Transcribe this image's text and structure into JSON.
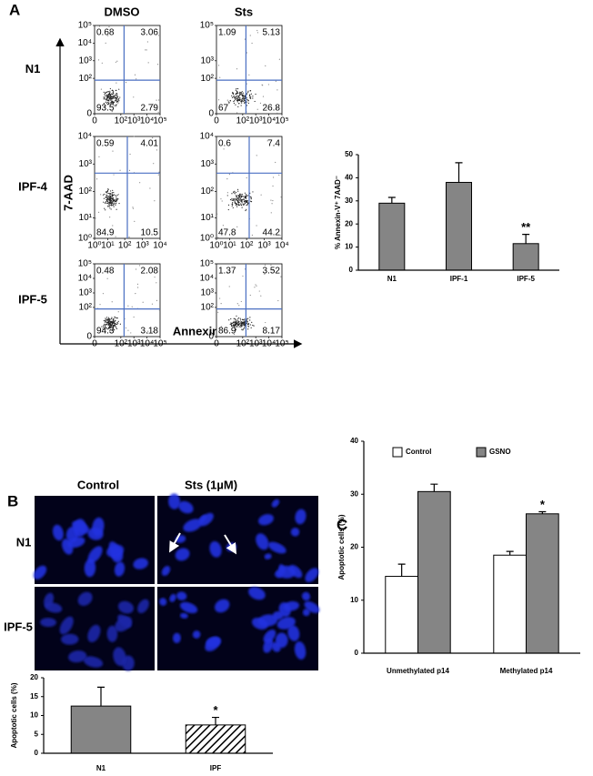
{
  "panel_labels": [
    "A",
    "B",
    "C"
  ],
  "micrographs": {
    "column_labels": [
      "Control",
      "Sts (1µM)"
    ],
    "row_labels": [
      "N1",
      "IPF-5"
    ]
  },
  "chart_data": [
    {
      "type": "flow",
      "column_labels": [
        "DMSO",
        "Sts"
      ],
      "row_labels": [
        "N1",
        "IPF-4",
        "IPF-5"
      ],
      "xlabel": "Annexin-V",
      "ylabel": "7-AAD",
      "line_color": "#4a6fc2",
      "plots": [
        {
          "quadrants": [
            0.68,
            3.06,
            93.5,
            2.79
          ],
          "xlim": [
            0,
            100000
          ],
          "ylim": [
            0,
            100000
          ],
          "xticks": [
            0,
            {
              "value": 100,
              "label": "10²"
            },
            {
              "value": 1000,
              "label": "10³"
            },
            {
              "value": 10000,
              "label": "10⁴"
            },
            {
              "value": 100000,
              "label": "10⁵"
            }
          ],
          "yticks": [
            0,
            {
              "value": 100,
              "label": "10²"
            },
            {
              "value": 1000,
              "label": "10³"
            },
            {
              "value": 10000,
              "label": "10⁴"
            },
            {
              "value": 100000,
              "label": "10⁵"
            }
          ]
        },
        {
          "quadrants": [
            1.09,
            5.13,
            67,
            26.8
          ],
          "xlim": [
            0,
            100000
          ],
          "ylim": [
            0,
            100000
          ],
          "xticks": [
            0,
            {
              "value": 100,
              "label": "10²"
            },
            {
              "value": 1000,
              "label": "10³"
            },
            {
              "value": 10000,
              "label": "10⁴"
            },
            {
              "value": 100000,
              "label": "10⁵"
            }
          ],
          "yticks": [
            0,
            {
              "value": 100,
              "label": "10²"
            },
            {
              "value": 1000,
              "label": "10³"
            },
            {
              "value": 100000,
              "label": "10⁵"
            }
          ]
        },
        {
          "quadrants": [
            0.59,
            4.01,
            84.9,
            10.5
          ],
          "xlim": [
            1,
            10000
          ],
          "ylim": [
            1,
            10000
          ],
          "xticks": [
            {
              "value": 1,
              "label": "10⁰"
            },
            {
              "value": 10,
              "label": "10¹"
            },
            {
              "value": 100,
              "label": "10²"
            },
            {
              "value": 1000,
              "label": "10³"
            },
            {
              "value": 10000,
              "label": "10⁴"
            }
          ],
          "yticks": [
            {
              "value": 1,
              "label": "10⁰"
            },
            {
              "value": 10,
              "label": "10¹"
            },
            {
              "value": 100,
              "label": "10²"
            },
            {
              "value": 1000,
              "label": "10³"
            },
            {
              "value": 10000,
              "label": "10⁴"
            }
          ]
        },
        {
          "quadrants": [
            0.6,
            7.4,
            47.8,
            44.2
          ],
          "xlim": [
            1,
            10000
          ],
          "ylim": [
            1,
            10000
          ],
          "xticks": [
            {
              "value": 1,
              "label": "10⁰"
            },
            {
              "value": 10,
              "label": "10¹"
            },
            {
              "value": 100,
              "label": "10²"
            },
            {
              "value": 1000,
              "label": "10³"
            },
            {
              "value": 10000,
              "label": "10⁴"
            }
          ],
          "yticks": [
            {
              "value": 1,
              "label": "10⁰"
            },
            {
              "value": 10,
              "label": "10¹"
            },
            {
              "value": 100,
              "label": "10²"
            },
            {
              "value": 1000,
              "label": "10³"
            },
            {
              "value": 10000,
              "label": "10⁴"
            }
          ]
        },
        {
          "quadrants": [
            0.48,
            2.08,
            94.3,
            3.18
          ],
          "xlim": [
            0,
            100000
          ],
          "ylim": [
            0,
            100000
          ],
          "xticks": [
            0,
            {
              "value": 100,
              "label": "10²"
            },
            {
              "value": 1000,
              "label": "10³"
            },
            {
              "value": 10000,
              "label": "10⁴"
            },
            {
              "value": 100000,
              "label": "10⁵"
            }
          ],
          "yticks": [
            0,
            {
              "value": 100,
              "label": "10²"
            },
            {
              "value": 1000,
              "label": "10³"
            },
            {
              "value": 10000,
              "label": "10⁴"
            },
            {
              "value": 100000,
              "label": "10⁵"
            }
          ]
        },
        {
          "quadrants": [
            1.37,
            3.52,
            86.9,
            8.17
          ],
          "xlim": [
            0,
            100000
          ],
          "ylim": [
            0,
            100000
          ],
          "xticks": [
            0,
            {
              "value": 100,
              "label": "10²"
            },
            {
              "value": 1000,
              "label": "10³"
            },
            {
              "value": 10000,
              "label": "10⁴"
            },
            {
              "value": 100000,
              "label": "10⁵"
            }
          ],
          "yticks": [
            0,
            {
              "value": 100,
              "label": "10²"
            },
            {
              "value": 1000,
              "label": "10³"
            },
            {
              "value": 10000,
              "label": "10⁴"
            },
            {
              "value": 100000,
              "label": "10⁵"
            }
          ]
        }
      ]
    },
    {
      "type": "bar",
      "ylabel": "% Annexin-V⁺ 7AAD⁻",
      "categories": [
        "N1",
        "IPF-1",
        "IPF-5"
      ],
      "values": [
        29,
        38,
        11.5
      ],
      "errors": [
        2.5,
        8.5,
        4
      ],
      "significance": [
        null,
        null,
        "**"
      ],
      "color": "#858585",
      "ylim": [
        0,
        50
      ],
      "yticks": [
        0,
        10,
        20,
        30,
        40,
        50
      ]
    },
    {
      "type": "bar",
      "ylabel": "Apoptotic cells (%)",
      "categories": [
        "N1",
        "IPF"
      ],
      "values": [
        12.5,
        7.5
      ],
      "errors": [
        5,
        2
      ],
      "significance": [
        null,
        "*"
      ],
      "styles": [
        "solid",
        "hatched"
      ],
      "color": "#858585",
      "ylim": [
        0,
        20
      ],
      "yticks": [
        0,
        5,
        10,
        15,
        20
      ]
    },
    {
      "type": "bar",
      "ylabel": "Apoptotic cells (%)",
      "categories": [
        "Unmethylated p14",
        "Methylated p14"
      ],
      "series": [
        {
          "name": "Control",
          "color": "#ffffff",
          "values": [
            14.5,
            18.5
          ],
          "errors": [
            2.3,
            0.7
          ],
          "significance": [
            null,
            null
          ]
        },
        {
          "name": "GSNO",
          "color": "#858585",
          "values": [
            30.5,
            26.3
          ],
          "errors": [
            1.4,
            0.4
          ],
          "significance": [
            null,
            "*"
          ]
        }
      ],
      "ylim": [
        0,
        40
      ],
      "yticks": [
        0,
        10,
        20,
        30,
        40
      ]
    }
  ]
}
